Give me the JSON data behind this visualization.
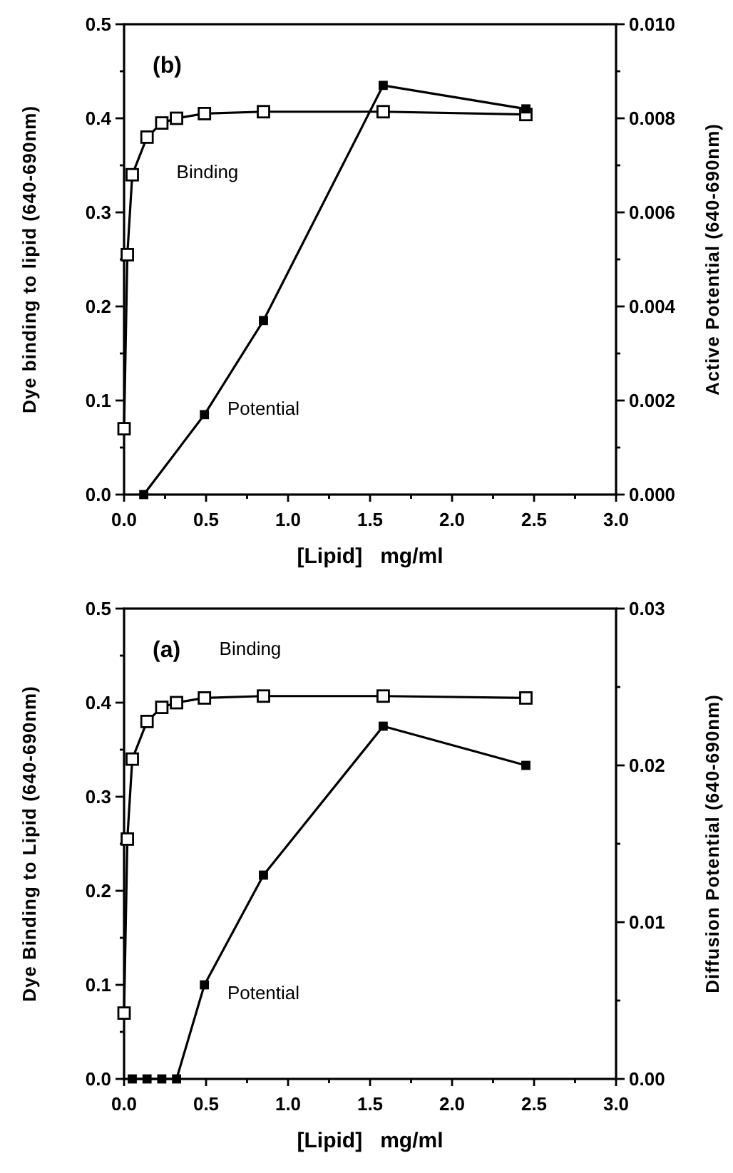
{
  "chart_data": [
    {
      "type": "line",
      "annotations": [
        "(b)"
      ],
      "xlabel": "[Lipid]   mg/ml",
      "ylabel": "Dye binding to lipid (640-690nm)",
      "y2label": "Active Potential (640-690nm)",
      "marker": "square",
      "line_style": "solid",
      "grid": false,
      "xlim": [
        0,
        3
      ],
      "xticks": [
        {
          "value": 0,
          "label": "0.0"
        },
        {
          "value": 0.25,
          "label": null
        },
        {
          "value": 0.5,
          "label": "0.5"
        },
        {
          "value": 0.75,
          "label": null
        },
        {
          "value": 1,
          "label": "1.0"
        },
        {
          "value": 1.25,
          "label": null
        },
        {
          "value": 1.5,
          "label": "1.5"
        },
        {
          "value": 1.75,
          "label": null
        },
        {
          "value": 2,
          "label": "2.0"
        },
        {
          "value": 2.25,
          "label": null
        },
        {
          "value": 2.5,
          "label": "2.5"
        },
        {
          "value": 2.75,
          "label": null
        },
        {
          "value": 3,
          "label": "3.0"
        }
      ],
      "ylim": [
        0,
        0.5
      ],
      "yticks": [
        {
          "value": 0,
          "label": "0.0"
        },
        {
          "value": 0.05,
          "label": null
        },
        {
          "value": 0.1,
          "label": "0.1"
        },
        {
          "value": 0.15,
          "label": null
        },
        {
          "value": 0.2,
          "label": "0.2"
        },
        {
          "value": 0.25,
          "label": null
        },
        {
          "value": 0.3,
          "label": "0.3"
        },
        {
          "value": 0.35,
          "label": null
        },
        {
          "value": 0.4,
          "label": "0.4"
        },
        {
          "value": 0.45,
          "label": null
        },
        {
          "value": 0.5,
          "label": "0.5"
        }
      ],
      "y2lim": [
        0,
        0.01
      ],
      "y2ticks": [
        {
          "value": 0,
          "label": "0.000"
        },
        {
          "value": 0.001,
          "label": null
        },
        {
          "value": 0.002,
          "label": "0.002"
        },
        {
          "value": 0.003,
          "label": null
        },
        {
          "value": 0.004,
          "label": "0.004"
        },
        {
          "value": 0.005,
          "label": null
        },
        {
          "value": 0.006,
          "label": "0.006"
        },
        {
          "value": 0.007,
          "label": null
        },
        {
          "value": 0.008,
          "label": "0.008"
        },
        {
          "value": 0.009,
          "label": null
        },
        {
          "value": 0.01,
          "label": "0.010"
        }
      ],
      "series": [
        {
          "name": "Binding",
          "color": "#000000",
          "x": [
            0,
            0.02,
            0.05,
            0.14,
            0.23,
            0.32,
            0.49,
            0.85,
            1.58,
            2.45
          ],
          "values": [
            0.07,
            0.255,
            0.34,
            0.38,
            0.395,
            0.4,
            0.405,
            0.407,
            0.407,
            0.404
          ]
        },
        {
          "name": "Potential",
          "color": "#000000",
          "axis": "y2",
          "x": [
            0.12,
            0.49,
            0.85,
            1.58,
            2.45
          ],
          "values": [
            0,
            0.0017,
            0.0037,
            0.0087,
            0.0082
          ]
        }
      ]
    },
    {
      "type": "line",
      "annotations": [
        "(a)"
      ],
      "xlabel": "[Lipid]   mg/ml",
      "ylabel": "Dye Binding to Lipid (640-690nm)",
      "y2label": "Diffusion Potential (640-690nm)",
      "marker": "square",
      "line_style": "solid",
      "grid": false,
      "xlim": [
        0,
        3
      ],
      "xticks": [
        {
          "value": 0,
          "label": "0.0"
        },
        {
          "value": 0.25,
          "label": null
        },
        {
          "value": 0.5,
          "label": "0.5"
        },
        {
          "value": 0.75,
          "label": null
        },
        {
          "value": 1,
          "label": "1.0"
        },
        {
          "value": 1.25,
          "label": null
        },
        {
          "value": 1.5,
          "label": "1.5"
        },
        {
          "value": 1.75,
          "label": null
        },
        {
          "value": 2,
          "label": "2.0"
        },
        {
          "value": 2.25,
          "label": null
        },
        {
          "value": 2.5,
          "label": "2.5"
        },
        {
          "value": 2.75,
          "label": null
        },
        {
          "value": 3,
          "label": "3.0"
        }
      ],
      "ylim": [
        0,
        0.5
      ],
      "yticks": [
        {
          "value": 0,
          "label": "0.0"
        },
        {
          "value": 0.05,
          "label": null
        },
        {
          "value": 0.1,
          "label": "0.1"
        },
        {
          "value": 0.15,
          "label": null
        },
        {
          "value": 0.2,
          "label": "0.2"
        },
        {
          "value": 0.25,
          "label": null
        },
        {
          "value": 0.3,
          "label": "0.3"
        },
        {
          "value": 0.35,
          "label": null
        },
        {
          "value": 0.4,
          "label": "0.4"
        },
        {
          "value": 0.45,
          "label": null
        },
        {
          "value": 0.5,
          "label": "0.5"
        }
      ],
      "y2lim": [
        0,
        0.03
      ],
      "y2ticks": [
        {
          "value": 0,
          "label": "0.00"
        },
        {
          "value": 0.005,
          "label": null
        },
        {
          "value": 0.01,
          "label": "0.01"
        },
        {
          "value": 0.015,
          "label": null
        },
        {
          "value": 0.02,
          "label": "0.02"
        },
        {
          "value": 0.025,
          "label": null
        },
        {
          "value": 0.03,
          "label": "0.03"
        }
      ],
      "series": [
        {
          "name": "Binding",
          "color": "#000000",
          "x": [
            0,
            0.02,
            0.05,
            0.14,
            0.23,
            0.32,
            0.49,
            0.85,
            1.58,
            2.45
          ],
          "values": [
            0.07,
            0.255,
            0.34,
            0.38,
            0.395,
            0.4,
            0.405,
            0.407,
            0.407,
            0.405
          ]
        },
        {
          "name": "Potential",
          "color": "#000000",
          "axis": "y2",
          "x": [
            0.05,
            0.14,
            0.23,
            0.32,
            0.49,
            0.85,
            1.58,
            2.45
          ],
          "values": [
            0,
            0,
            0,
            0,
            0.006,
            0.013,
            0.0225,
            0.02
          ]
        }
      ]
    }
  ]
}
